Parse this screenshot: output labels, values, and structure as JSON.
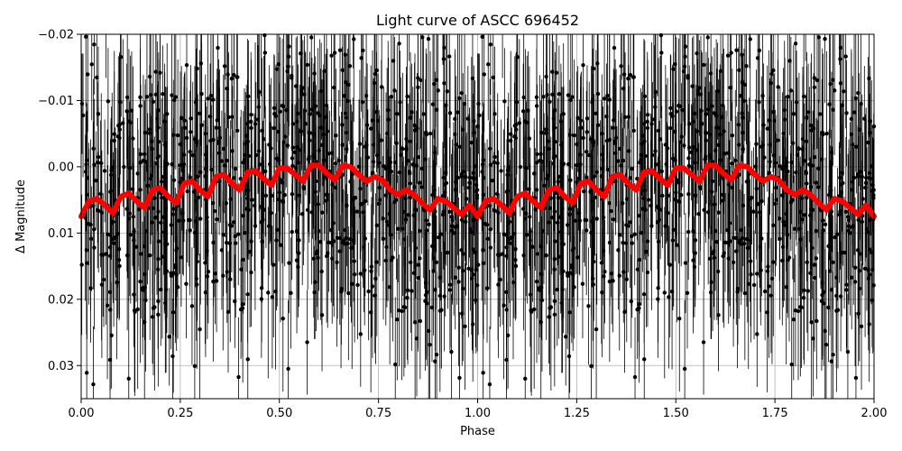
{
  "chart_data": {
    "type": "scatter",
    "title": "Light curve of ASCC 696452",
    "xlabel": "Phase",
    "ylabel": "Δ Magnitude",
    "xlim": [
      0.0,
      2.0
    ],
    "ylim": [
      0.035,
      -0.02
    ],
    "y_inverted": true,
    "grid": true,
    "xticks": [
      0.0,
      0.25,
      0.5,
      0.75,
      1.0,
      1.25,
      1.5,
      1.75,
      2.0
    ],
    "xtick_labels": [
      "0.00",
      "0.25",
      "0.50",
      "0.75",
      "1.00",
      "1.25",
      "1.50",
      "1.75",
      "2.00"
    ],
    "yticks": [
      -0.02,
      -0.01,
      0.0,
      0.01,
      0.02,
      0.03
    ],
    "ytick_labels": [
      "−0.02",
      "−0.01",
      "0.00",
      "0.01",
      "0.02",
      "0.03"
    ],
    "series": [
      {
        "kind": "data points with error bars",
        "color": "#000000",
        "scatter_sigma_mag": 0.011,
        "error_bar_mag": 0.01,
        "repeats_each_unit_phase": true
      },
      {
        "kind": "model fit",
        "color": "#ff0000",
        "x": [
          0.0,
          0.02,
          0.04,
          0.06,
          0.08,
          0.1,
          0.12,
          0.14,
          0.16,
          0.18,
          0.2,
          0.22,
          0.24,
          0.26,
          0.28,
          0.3,
          0.32,
          0.34,
          0.36,
          0.38,
          0.4,
          0.42,
          0.44,
          0.46,
          0.48,
          0.5,
          0.52,
          0.54,
          0.56,
          0.58,
          0.6,
          0.62,
          0.64,
          0.66,
          0.68,
          0.7,
          0.72,
          0.74,
          0.76,
          0.78,
          0.8,
          0.82,
          0.84,
          0.86,
          0.88,
          0.9,
          0.92,
          0.94,
          0.96,
          0.98,
          1.0
        ],
        "y": [
          0.0075,
          0.0052,
          0.0048,
          0.0058,
          0.007,
          0.0045,
          0.004,
          0.0052,
          0.0062,
          0.0035,
          0.0032,
          0.0045,
          0.0055,
          0.0025,
          0.0022,
          0.0035,
          0.0045,
          0.0015,
          0.0012,
          0.0025,
          0.0035,
          0.0008,
          0.0006,
          0.0018,
          0.0028,
          0.0002,
          0.0002,
          0.0012,
          0.0022,
          -0.0002,
          -0.0002,
          0.001,
          0.002,
          -0.0002,
          0.0,
          0.0012,
          0.0022,
          0.0015,
          0.002,
          0.0035,
          0.0042,
          0.0035,
          0.0042,
          0.0055,
          0.0065,
          0.0048,
          0.0052,
          0.0062,
          0.0072,
          0.0058,
          0.0075
        ]
      }
    ]
  }
}
